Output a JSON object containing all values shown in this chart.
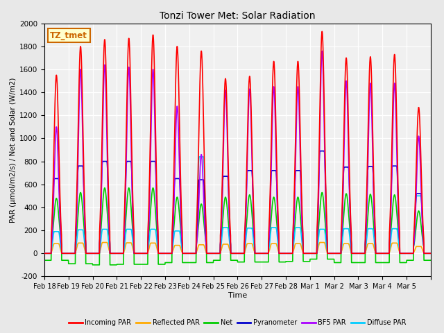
{
  "title": "Tonzi Tower Met: Solar Radiation",
  "xlabel": "Time",
  "ylabel": "PAR (μmol/m2/s) / Net and Solar (W/m2)",
  "ylim": [
    -200,
    2000
  ],
  "yticks": [
    -200,
    0,
    200,
    400,
    600,
    800,
    1000,
    1200,
    1400,
    1600,
    1800,
    2000
  ],
  "x_labels": [
    "Feb 18",
    "Feb 19",
    "Feb 20",
    "Feb 21",
    "Feb 22",
    "Feb 23",
    "Feb 24",
    "Feb 25",
    "Feb 26",
    "Feb 27",
    "Feb 28",
    "Mar 1",
    "Mar 2",
    "Mar 3",
    "Mar 4",
    "Mar 5"
  ],
  "annotation_text": "TZ_tmet",
  "annotation_color": "#cc6600",
  "annotation_bg": "#ffffcc",
  "series": {
    "incoming_par": {
      "color": "#ff0000",
      "label": "Incoming PAR",
      "lw": 1.2
    },
    "reflected_par": {
      "color": "#ffaa00",
      "label": "Reflected PAR",
      "lw": 1.2
    },
    "net": {
      "color": "#00cc00",
      "label": "Net",
      "lw": 1.2
    },
    "pyranometer": {
      "color": "#0000cc",
      "label": "Pyranometer",
      "lw": 1.2
    },
    "bf5_par": {
      "color": "#aa00ff",
      "label": "BF5 PAR",
      "lw": 1.2
    },
    "diffuse_par": {
      "color": "#00ccff",
      "label": "Diffuse PAR",
      "lw": 1.2
    }
  },
  "bg_color": "#e8e8e8",
  "plot_bg_color": "#f0f0f0",
  "n_days": 16,
  "pts_per_day": 144,
  "incoming_peaks": [
    1550,
    1800,
    1860,
    1870,
    1900,
    1800,
    1760,
    1520,
    1540,
    1670,
    1670,
    1930,
    1700,
    1710,
    1730,
    1270
  ],
  "bf5_peaks": [
    1100,
    1600,
    1640,
    1620,
    1600,
    1280,
    860,
    1420,
    1430,
    1450,
    1450,
    1760,
    1500,
    1480,
    1480,
    1020
  ],
  "pyrano_peaks": [
    650,
    760,
    800,
    800,
    800,
    650,
    640,
    670,
    720,
    720,
    720,
    890,
    750,
    755,
    760,
    520
  ],
  "reflected_peaks": [
    85,
    90,
    95,
    92,
    90,
    70,
    75,
    80,
    85,
    85,
    85,
    95,
    85,
    85,
    90,
    60
  ],
  "net_peaks": [
    480,
    530,
    570,
    570,
    570,
    490,
    430,
    490,
    510,
    490,
    490,
    530,
    520,
    515,
    510,
    370
  ],
  "net_neg_day": [
    -60,
    -90,
    -100,
    -95,
    -95,
    -80,
    -80,
    -60,
    -75,
    -75,
    -70,
    -50,
    -80,
    -80,
    -80,
    -60
  ],
  "diffuse_peaks": [
    190,
    205,
    210,
    210,
    210,
    195,
    840,
    225,
    220,
    225,
    225,
    210,
    215,
    215,
    215,
    500
  ]
}
